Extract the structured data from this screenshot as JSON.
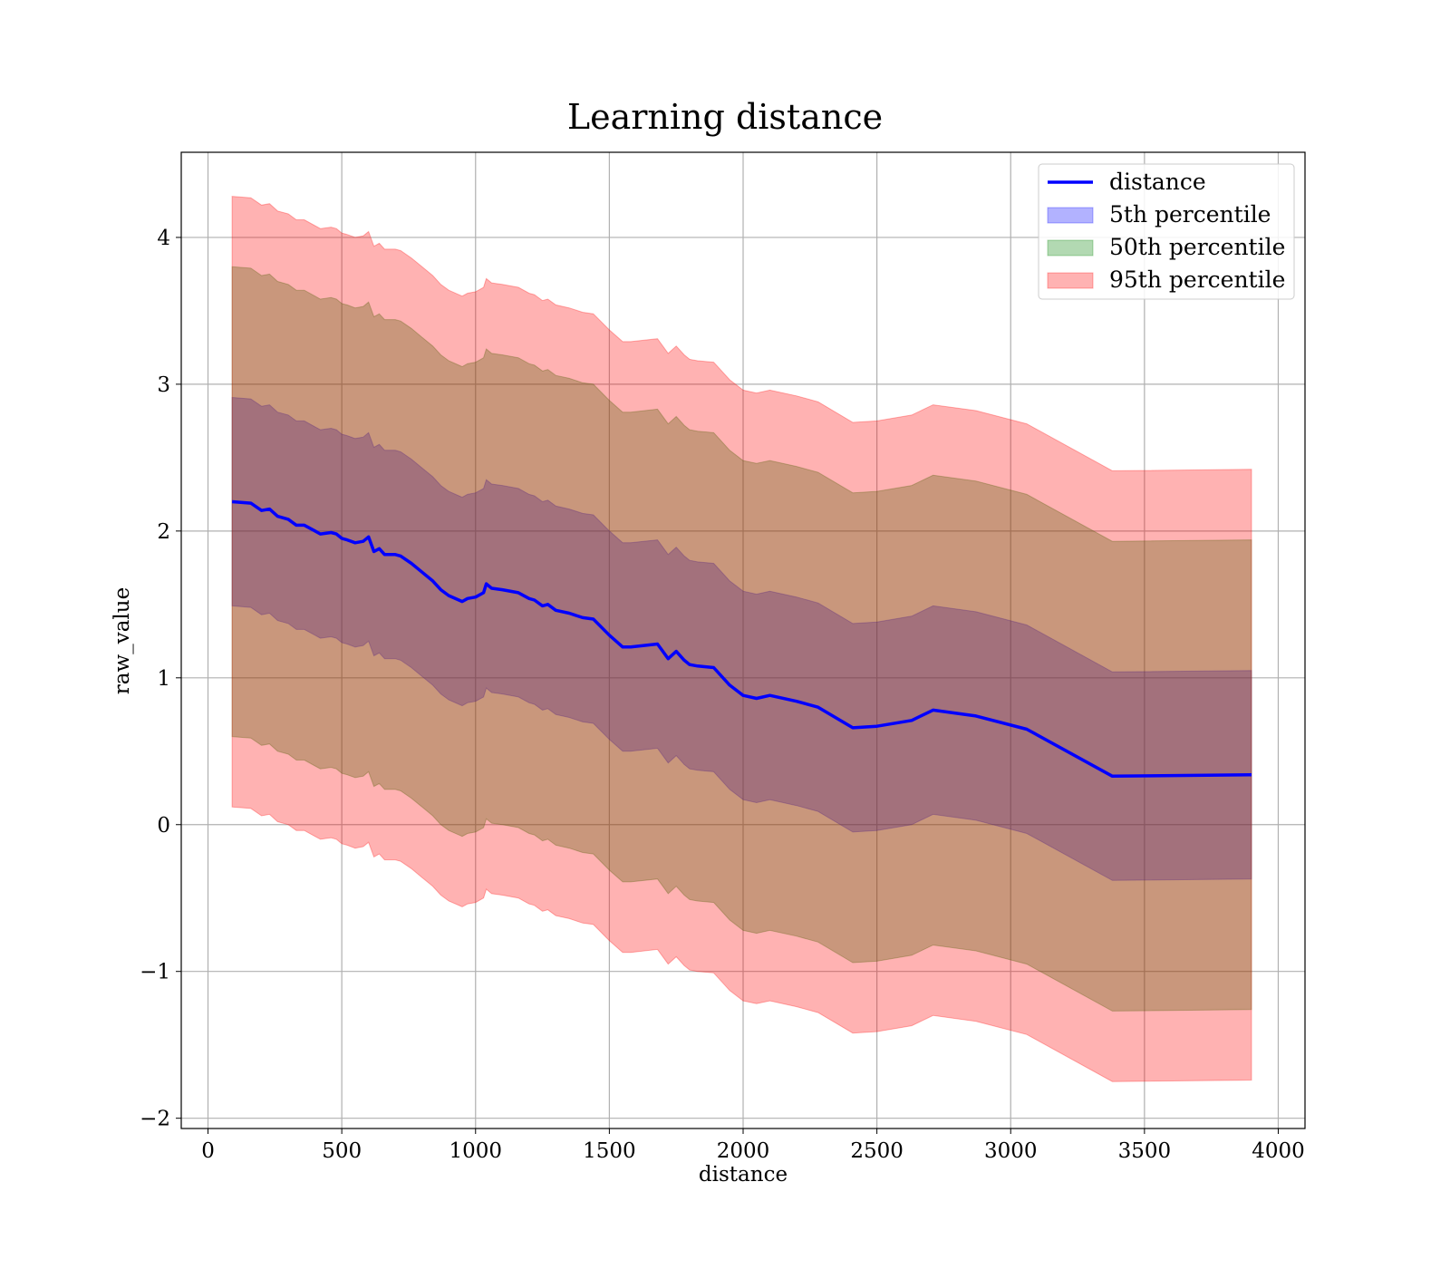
{
  "chart_data": {
    "type": "area",
    "title": "Learning distance",
    "xlabel": "distance",
    "ylabel": "raw_value",
    "xlim": [
      -100,
      4100
    ],
    "ylim": [
      -2.07,
      4.58
    ],
    "xticks": [
      0,
      500,
      1000,
      1500,
      2000,
      2500,
      3000,
      3500,
      4000
    ],
    "xtick_labels": [
      "0",
      "500",
      "1000",
      "1500",
      "2000",
      "2500",
      "3000",
      "3500",
      "4000"
    ],
    "yticks": [
      -2,
      -1,
      0,
      1,
      2,
      3,
      4
    ],
    "ytick_labels": [
      "−2",
      "−1",
      "0",
      "1",
      "2",
      "3",
      "4"
    ],
    "grid": true,
    "legend_position": "top-right",
    "x": [
      90,
      160,
      200,
      230,
      260,
      300,
      330,
      360,
      400,
      420,
      460,
      480,
      500,
      520,
      550,
      580,
      600,
      620,
      640,
      660,
      700,
      720,
      760,
      800,
      840,
      870,
      900,
      950,
      970,
      1000,
      1030,
      1040,
      1060,
      1100,
      1160,
      1200,
      1220,
      1250,
      1270,
      1300,
      1350,
      1400,
      1440,
      1500,
      1550,
      1580,
      1680,
      1720,
      1750,
      1780,
      1800,
      1830,
      1890,
      1950,
      2000,
      2050,
      2100,
      2200,
      2280,
      2410,
      2500,
      2630,
      2710,
      2870,
      3060,
      3380,
      3900
    ],
    "series": [
      {
        "name": "distance",
        "color": "#0000ff",
        "values": [
          2.2,
          2.19,
          2.14,
          2.15,
          2.1,
          2.08,
          2.04,
          2.04,
          2.0,
          1.98,
          1.99,
          1.98,
          1.95,
          1.94,
          1.92,
          1.93,
          1.96,
          1.86,
          1.88,
          1.84,
          1.84,
          1.83,
          1.78,
          1.72,
          1.66,
          1.6,
          1.56,
          1.52,
          1.54,
          1.55,
          1.58,
          1.64,
          1.61,
          1.6,
          1.58,
          1.54,
          1.53,
          1.49,
          1.5,
          1.46,
          1.44,
          1.41,
          1.4,
          1.29,
          1.21,
          1.21,
          1.23,
          1.13,
          1.18,
          1.12,
          1.09,
          1.08,
          1.07,
          0.95,
          0.88,
          0.86,
          0.88,
          0.84,
          0.8,
          0.66,
          0.67,
          0.71,
          0.78,
          0.74,
          0.65,
          0.33,
          0.34
        ]
      },
      {
        "name": "5th percentile",
        "color": "#0000ff",
        "half_width": 0.71
      },
      {
        "name": "50th percentile",
        "color": "#008000",
        "half_width": 1.6
      },
      {
        "name": "95th percentile",
        "color": "#ff0000",
        "half_width": 2.08
      }
    ]
  }
}
